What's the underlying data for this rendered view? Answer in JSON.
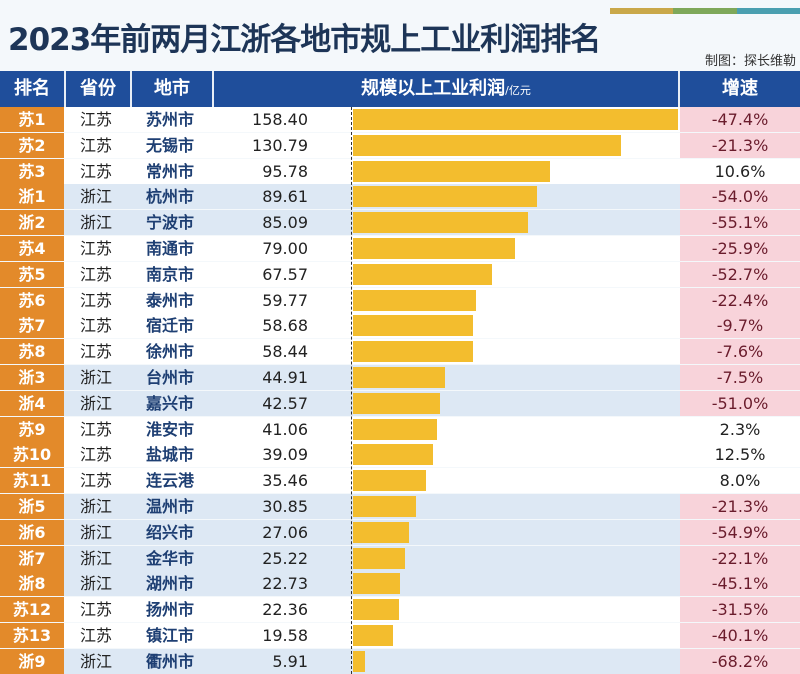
{
  "title": "2023年前两月江浙各地市规上工业利润排名",
  "credit": "制图：探长维勒",
  "colors": {
    "header": "#1f4e9b",
    "bar": "#f3bd2e",
    "rank": "#e38a2a",
    "zhejiang_row": "#dde8f4",
    "negative_cell": "#f8d3da"
  },
  "chart_data": {
    "type": "bar",
    "orientation": "horizontal",
    "headers": {
      "rank": "排名",
      "province": "省份",
      "city": "地市",
      "value": "规模以上工业利润",
      "unit": "/亿元",
      "growth": "增速"
    },
    "rows": [
      {
        "rank": "苏1",
        "province": "江苏",
        "city": "苏州市",
        "value": "158.40",
        "growth": "-47.4%"
      },
      {
        "rank": "苏2",
        "province": "江苏",
        "city": "无锡市",
        "value": "130.79",
        "growth": "-21.3%"
      },
      {
        "rank": "苏3",
        "province": "江苏",
        "city": "常州市",
        "value": "95.78",
        "growth": "10.6%"
      },
      {
        "rank": "浙1",
        "province": "浙江",
        "city": "杭州市",
        "value": "89.61",
        "growth": "-54.0%"
      },
      {
        "rank": "浙2",
        "province": "浙江",
        "city": "宁波市",
        "value": "85.09",
        "growth": "-55.1%"
      },
      {
        "rank": "苏4",
        "province": "江苏",
        "city": "南通市",
        "value": "79.00",
        "growth": "-25.9%"
      },
      {
        "rank": "苏5",
        "province": "江苏",
        "city": "南京市",
        "value": "67.57",
        "growth": "-52.7%"
      },
      {
        "rank": "苏6",
        "province": "江苏",
        "city": "泰州市",
        "value": "59.77",
        "growth": "-22.4%"
      },
      {
        "rank": "苏7",
        "province": "江苏",
        "city": "宿迁市",
        "value": "58.68",
        "growth": "-9.7%"
      },
      {
        "rank": "苏8",
        "province": "江苏",
        "city": "徐州市",
        "value": "58.44",
        "growth": "-7.6%"
      },
      {
        "rank": "浙3",
        "province": "浙江",
        "city": "台州市",
        "value": "44.91",
        "growth": "-7.5%"
      },
      {
        "rank": "浙4",
        "province": "浙江",
        "city": "嘉兴市",
        "value": "42.57",
        "growth": "-51.0%"
      },
      {
        "rank": "苏9",
        "province": "江苏",
        "city": "淮安市",
        "value": "41.06",
        "growth": "2.3%"
      },
      {
        "rank": "苏10",
        "province": "江苏",
        "city": "盐城市",
        "value": "39.09",
        "growth": "12.5%"
      },
      {
        "rank": "苏11",
        "province": "江苏",
        "city": "连云港",
        "value": "35.46",
        "growth": "8.0%"
      },
      {
        "rank": "浙5",
        "province": "浙江",
        "city": "温州市",
        "value": "30.85",
        "growth": "-21.3%"
      },
      {
        "rank": "浙6",
        "province": "浙江",
        "city": "绍兴市",
        "value": "27.06",
        "growth": "-54.9%"
      },
      {
        "rank": "浙7",
        "province": "浙江",
        "city": "金华市",
        "value": "25.22",
        "growth": "-22.1%"
      },
      {
        "rank": "浙8",
        "province": "浙江",
        "city": "湖州市",
        "value": "22.73",
        "growth": "-45.1%"
      },
      {
        "rank": "苏12",
        "province": "江苏",
        "city": "扬州市",
        "value": "22.36",
        "growth": "-31.5%"
      },
      {
        "rank": "苏13",
        "province": "江苏",
        "city": "镇江市",
        "value": "19.58",
        "growth": "-40.1%"
      },
      {
        "rank": "浙9",
        "province": "浙江",
        "city": "衢州市",
        "value": "5.91",
        "growth": "-68.2%"
      }
    ]
  }
}
